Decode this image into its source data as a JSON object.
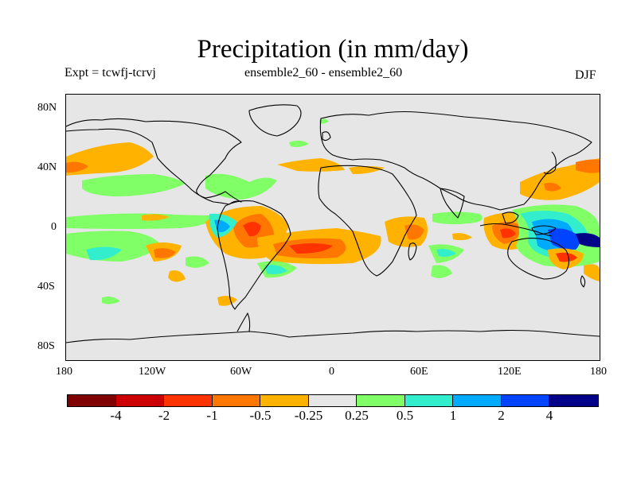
{
  "title": "Precipitation (in mm/day)",
  "subtitle_left": "Expt = tcwfj-tcrvj",
  "subtitle_center": "ensemble2_60 - ensemble2_60",
  "season": "DJF",
  "lat_labels": [
    "80N",
    "40N",
    "0",
    "40S",
    "80S"
  ],
  "lon_labels": [
    "180",
    "120W",
    "60W",
    "0",
    "60E",
    "120E",
    "180"
  ],
  "colorbar": {
    "colors": [
      "#800000",
      "#cc0000",
      "#ff3300",
      "#ff7700",
      "#ffb300",
      "#e6e6e6",
      "#80ff66",
      "#33eecc",
      "#00aaff",
      "#0044ff",
      "#000088"
    ],
    "labels": [
      "-4",
      "-2",
      "-1",
      "-0.5",
      "-0.25",
      "0.25",
      "0.5",
      "1",
      "2",
      "4"
    ]
  }
}
